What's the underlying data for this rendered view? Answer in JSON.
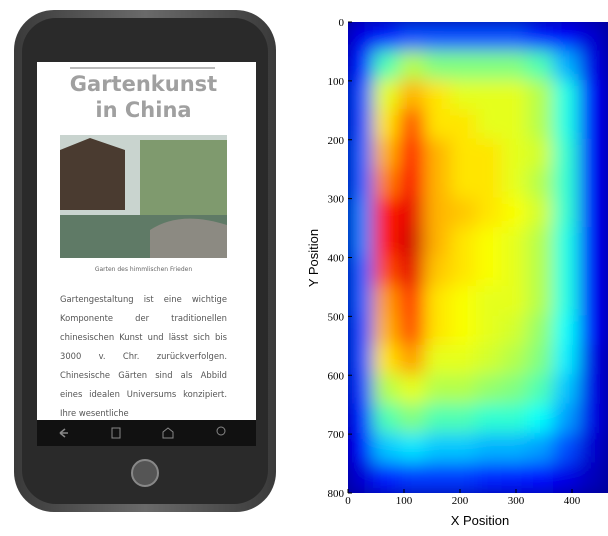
{
  "phone": {
    "title_lines": [
      "Gartenkunst",
      "in China"
    ],
    "caption": "Garten des himmlischen Frieden",
    "paragraph": "Gartengestaltung ist eine wichtige Komponente der traditionellen chinesischen Kunst und lässt sich bis 3000 v. Chr. zurückverfolgen. Chinesische Gärten sind als Abbild eines idealen Universums konzipiert. Ihre wesentliche"
  },
  "chart_data": {
    "type": "heatmap",
    "x_label": "X Position",
    "y_label": "Y Position",
    "x": [
      23,
      69,
      115,
      161,
      207,
      253,
      299,
      345,
      391,
      437
    ],
    "y": [
      25,
      75,
      125,
      175,
      225,
      275,
      325,
      375,
      425,
      475,
      525,
      575,
      625,
      675,
      725,
      775
    ],
    "z": [
      [
        0.1,
        0.15,
        0.2,
        0.2,
        0.2,
        0.2,
        0.2,
        0.15,
        0.12,
        0.08
      ],
      [
        0.15,
        0.45,
        0.55,
        0.5,
        0.5,
        0.5,
        0.5,
        0.45,
        0.3,
        0.1
      ],
      [
        0.2,
        0.6,
        0.7,
        0.65,
        0.6,
        0.6,
        0.6,
        0.55,
        0.4,
        0.12
      ],
      [
        0.2,
        0.65,
        0.8,
        0.65,
        0.65,
        0.6,
        0.6,
        0.55,
        0.4,
        0.12
      ],
      [
        0.22,
        0.7,
        0.85,
        0.7,
        0.65,
        0.65,
        0.6,
        0.58,
        0.42,
        0.12
      ],
      [
        0.22,
        0.75,
        0.88,
        0.7,
        0.65,
        0.65,
        0.6,
        0.55,
        0.42,
        0.12
      ],
      [
        0.25,
        0.85,
        0.9,
        0.7,
        0.68,
        0.65,
        0.62,
        0.58,
        0.42,
        0.12
      ],
      [
        0.25,
        0.85,
        0.92,
        0.7,
        0.65,
        0.62,
        0.6,
        0.55,
        0.4,
        0.12
      ],
      [
        0.22,
        0.8,
        0.9,
        0.68,
        0.65,
        0.62,
        0.6,
        0.55,
        0.4,
        0.12
      ],
      [
        0.22,
        0.72,
        0.82,
        0.65,
        0.62,
        0.6,
        0.6,
        0.55,
        0.4,
        0.12
      ],
      [
        0.2,
        0.7,
        0.8,
        0.65,
        0.62,
        0.6,
        0.58,
        0.52,
        0.38,
        0.12
      ],
      [
        0.2,
        0.65,
        0.72,
        0.6,
        0.6,
        0.58,
        0.55,
        0.5,
        0.36,
        0.1
      ],
      [
        0.18,
        0.55,
        0.6,
        0.55,
        0.55,
        0.52,
        0.5,
        0.45,
        0.32,
        0.1
      ],
      [
        0.15,
        0.45,
        0.5,
        0.45,
        0.45,
        0.42,
        0.42,
        0.38,
        0.28,
        0.1
      ],
      [
        0.12,
        0.32,
        0.35,
        0.32,
        0.32,
        0.3,
        0.3,
        0.28,
        0.2,
        0.08
      ],
      [
        0.08,
        0.15,
        0.18,
        0.18,
        0.18,
        0.16,
        0.15,
        0.14,
        0.1,
        0.06
      ]
    ],
    "colormap": "jet",
    "xlim": [
      0,
      460
    ],
    "ylim": [
      800,
      0
    ],
    "xticks": [
      0,
      100,
      200,
      300,
      400
    ],
    "yticks": [
      0,
      100,
      200,
      300,
      400,
      500,
      600,
      700,
      800
    ]
  }
}
